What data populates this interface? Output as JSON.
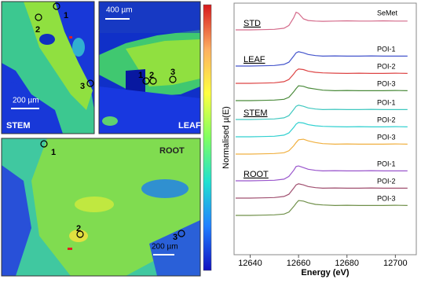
{
  "maps": [
    {
      "label": "STEM",
      "scale_bar": "200 µm",
      "points": [
        "1",
        "2",
        "3"
      ]
    },
    {
      "label": "LEAF",
      "scale_bar": "400 µm",
      "points": [
        "1",
        "2",
        "3"
      ]
    },
    {
      "label": "ROOT",
      "scale_bar": "200 µm",
      "points": [
        "1",
        "2",
        "3"
      ]
    }
  ],
  "colorbar": {
    "label": "Normalised µ(E)",
    "colors": [
      "#d7191c",
      "#fdae61",
      "#ffff40",
      "#80ff60",
      "#20e0d0",
      "#2080ff",
      "#1010c0"
    ]
  },
  "chart_data": {
    "type": "line",
    "x_label": "Energy (eV)",
    "xlim": [
      12634,
      12708
    ],
    "xticks": [
      12640,
      12660,
      12680,
      12700
    ],
    "x": [
      12634,
      12640,
      12645,
      12650,
      12654,
      12656,
      12658,
      12659,
      12660,
      12662,
      12664,
      12667,
      12670,
      12675,
      12680,
      12685,
      12690,
      12695,
      12700,
      12705
    ],
    "groups": [
      {
        "name": "STD",
        "series": [
          {
            "name": "SeMet",
            "color": "#d46a8a",
            "values": [
              0,
              0,
              0.02,
              0.05,
              0.15,
              0.4,
              1.1,
              1.6,
              1.5,
              1.0,
              0.85,
              0.8,
              0.78,
              0.8,
              0.82,
              0.8,
              0.8,
              0.82,
              0.8,
              0.8
            ]
          }
        ]
      },
      {
        "name": "LEAF",
        "series": [
          {
            "name": "POI-1",
            "color": "#4455cc",
            "values": [
              0,
              0,
              0.02,
              0.05,
              0.15,
              0.35,
              0.9,
              1.2,
              1.3,
              1.2,
              1.05,
              0.95,
              0.9,
              0.92,
              0.9,
              0.9,
              0.92,
              0.9,
              0.9,
              0.9
            ]
          },
          {
            "name": "POI-2",
            "color": "#dd4444",
            "values": [
              0,
              0,
              0.02,
              0.05,
              0.15,
              0.35,
              0.85,
              1.15,
              1.3,
              1.25,
              1.1,
              1.0,
              0.95,
              0.92,
              0.9,
              0.92,
              0.9,
              0.9,
              0.92,
              0.9
            ]
          },
          {
            "name": "POI-3",
            "color": "#4a8a3a",
            "values": [
              0,
              0,
              0.02,
              0.05,
              0.12,
              0.3,
              0.8,
              1.1,
              1.35,
              1.3,
              1.15,
              1.05,
              0.95,
              0.9,
              0.92,
              0.9,
              0.9,
              0.9,
              0.92,
              0.9
            ]
          }
        ]
      },
      {
        "name": "STEM",
        "series": [
          {
            "name": "POI-1",
            "color": "#40c8c0",
            "values": [
              0,
              0,
              0.02,
              0.05,
              0.15,
              0.35,
              0.9,
              1.2,
              1.3,
              1.2,
              1.05,
              0.95,
              0.9,
              0.92,
              0.9,
              0.9,
              0.92,
              0.9,
              0.9,
              0.9
            ]
          },
          {
            "name": "POI-2",
            "color": "#30d0d0",
            "values": [
              0,
              0,
              0.02,
              0.05,
              0.15,
              0.35,
              0.85,
              1.15,
              1.3,
              1.25,
              1.1,
              1.0,
              0.95,
              0.92,
              0.9,
              0.92,
              0.9,
              0.9,
              0.92,
              0.9
            ]
          },
          {
            "name": "POI-3",
            "color": "#f0b040",
            "values": [
              0,
              0,
              0.02,
              0.05,
              0.12,
              0.3,
              0.75,
              1.05,
              1.3,
              1.35,
              1.2,
              1.05,
              0.95,
              0.9,
              0.92,
              0.9,
              0.9,
              0.9,
              0.92,
              0.9
            ]
          }
        ]
      },
      {
        "name": "ROOT",
        "series": [
          {
            "name": "POI-1",
            "color": "#9955cc",
            "values": [
              0,
              0,
              0.02,
              0.05,
              0.15,
              0.4,
              0.95,
              1.3,
              1.35,
              1.2,
              1.05,
              0.95,
              0.9,
              0.92,
              0.9,
              0.9,
              0.92,
              0.9,
              0.9,
              0.9
            ]
          },
          {
            "name": "POI-2",
            "color": "#a05070",
            "values": [
              0,
              0,
              0.02,
              0.05,
              0.15,
              0.35,
              0.9,
              1.2,
              1.3,
              1.2,
              1.05,
              0.95,
              0.9,
              0.92,
              0.9,
              0.9,
              0.92,
              0.9,
              0.9,
              0.9
            ]
          },
          {
            "name": "POI-3",
            "color": "#70904a",
            "values": [
              0,
              0,
              0.02,
              0.05,
              0.12,
              0.3,
              0.8,
              1.1,
              1.35,
              1.3,
              1.15,
              1.0,
              0.95,
              0.9,
              0.92,
              0.9,
              0.9,
              0.9,
              0.92,
              0.9
            ]
          }
        ]
      }
    ]
  }
}
